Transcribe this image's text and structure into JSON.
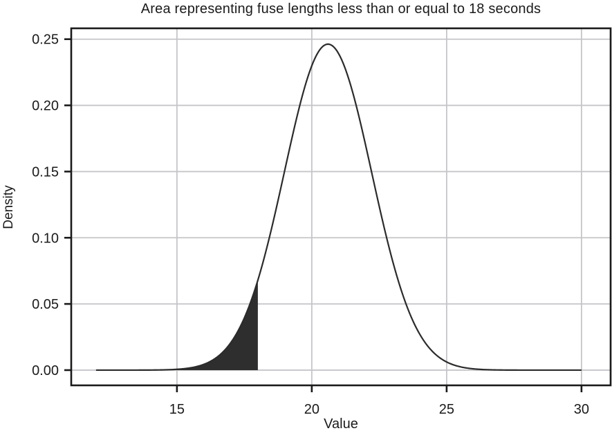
{
  "chart_data": {
    "type": "area",
    "title": "Area representing fuse lengths less than or equal to 18 seconds",
    "xlabel": "Value",
    "ylabel": "Density",
    "x_ticks": [
      15,
      20,
      25,
      30
    ],
    "y_ticks": [
      "0.00",
      "0.05",
      "0.10",
      "0.15",
      "0.20",
      "0.25"
    ],
    "xlim": [
      11.08,
      31.08
    ],
    "ylim": [
      -0.0115,
      0.2582
    ],
    "grid": true,
    "curve": {
      "distribution": "normal",
      "mean": 20.6,
      "sd": 1.62,
      "x_start": 12,
      "x_end": 30,
      "peak_density": 0.246
    },
    "shaded_region": {
      "x_from": 12,
      "x_to": 18,
      "meaning": "fuse lengths less than or equal to 18 seconds"
    },
    "colors": {
      "curve": "#2b2b2b",
      "fill": "#2e2e2e",
      "grid": "#c5c5c9",
      "frame": "#1a1a1a",
      "background": "#ffffff",
      "text": "#1a1a1a"
    }
  }
}
